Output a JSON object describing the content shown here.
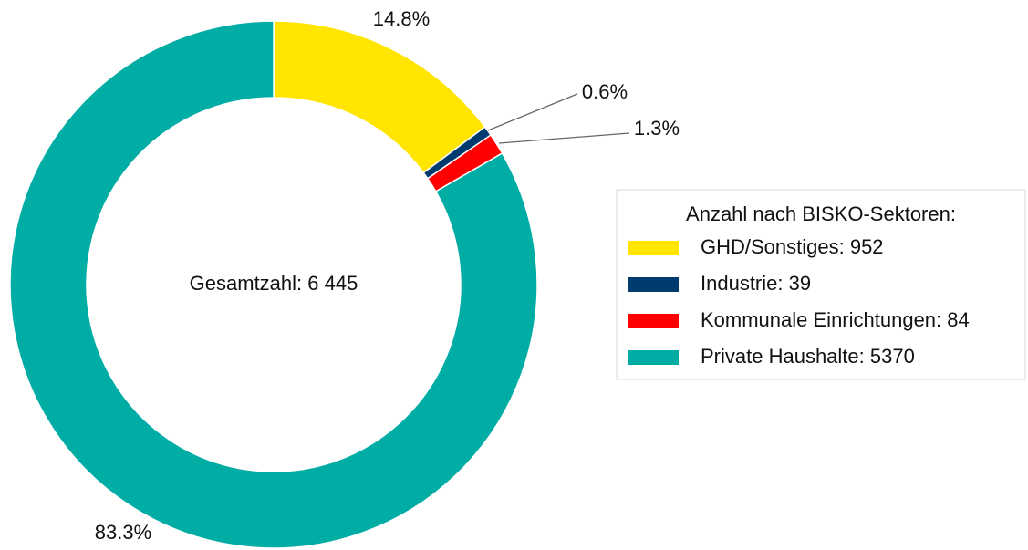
{
  "chart_data": {
    "type": "donut",
    "center_label": "Gesamtzahl: 6 445",
    "legend_title": "Anzahl nach BISKO-Sektoren:",
    "legend_position": "right",
    "categories": [
      "GHD/Sonstiges: 952",
      "Industrie: 39",
      "Kommunale Einrichtungen: 84",
      "Private Haushalte: 5370"
    ],
    "values": [
      14.8,
      0.6,
      1.3,
      83.3
    ],
    "value_labels": [
      "14.8%",
      "0.6%",
      "1.3%",
      "83.3%"
    ],
    "colors": [
      "#ffe500",
      "#003b6f",
      "#ff0000",
      "#00ada5"
    ]
  }
}
